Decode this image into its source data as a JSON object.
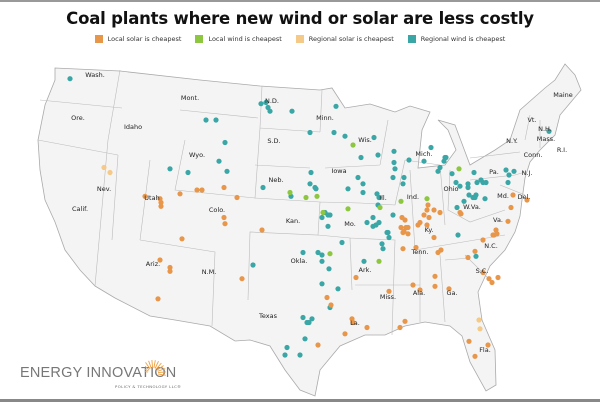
{
  "title": "Coal plants where new wind or solar are less costly",
  "legend": [
    {
      "key": "s",
      "label": "Local solar is cheapest",
      "color": "#e8964a"
    },
    {
      "key": "w",
      "label": "Local wind is cheapest",
      "color": "#8dc63f"
    },
    {
      "key": "r",
      "label": "Regional solar is cheapest",
      "color": "#f5c987"
    },
    {
      "key": "t",
      "label": "Regional wind is cheapest",
      "color": "#3aa6a6"
    }
  ],
  "logo": {
    "name": "ENERGY INNOVATION",
    "sub": "POLICY & TECHNOLOGY LLC®"
  },
  "states": [
    "Wash.",
    "Ore.",
    "Idaho",
    "Mont.",
    "Wyo.",
    "Nev.",
    "Calif.",
    "Utah",
    "Colo.",
    "Ariz.",
    "N.M.",
    "N.D.",
    "S.D.",
    "Neb.",
    "Kan.",
    "Okla.",
    "Texas",
    "Minn.",
    "Iowa",
    "Mo.",
    "Ark.",
    "La.",
    "Wis.",
    "Ill.",
    "Mich.",
    "Ind.",
    "Ohio",
    "Ky.",
    "Tenn.",
    "Miss.",
    "Ala.",
    "Ga.",
    "Fla.",
    "S.C.",
    "N.C.",
    "Va.",
    "W.Va.",
    "Pa.",
    "N.Y.",
    "Md.",
    "Del.",
    "N.J.",
    "Conn.",
    "Mass.",
    "R.I.",
    "Vt.",
    "N.H.",
    "Maine"
  ],
  "plants": [
    [
      -122.0,
      48.7,
      "t"
    ],
    [
      -102.9,
      46.7,
      "t"
    ],
    [
      -102.4,
      46.8,
      "t"
    ],
    [
      -102.2,
      46.4,
      "t"
    ],
    [
      -102.0,
      46.1,
      "t"
    ],
    [
      -99.8,
      46.1,
      "t"
    ],
    [
      -108.4,
      45.4,
      "t"
    ],
    [
      -107.4,
      45.4,
      "t"
    ],
    [
      -106.5,
      43.6,
      "t"
    ],
    [
      -107.1,
      42.1,
      "t"
    ],
    [
      -106.3,
      41.3,
      "t"
    ],
    [
      -112.0,
      41.5,
      "t"
    ],
    [
      -110.2,
      41.2,
      "t"
    ],
    [
      -102.7,
      40.0,
      "t"
    ],
    [
      -99.9,
      39.3,
      "t"
    ],
    [
      -103.7,
      33.8,
      "t"
    ],
    [
      -94.8,
      35.6,
      "t"
    ],
    [
      -98.7,
      34.8,
      "t"
    ],
    [
      -97.2,
      34.8,
      "t"
    ],
    [
      -96.8,
      34.6,
      "t"
    ],
    [
      -96.8,
      34.1,
      "t"
    ],
    [
      -96.1,
      33.5,
      "t"
    ],
    [
      -96.8,
      32.3,
      "t"
    ],
    [
      -95.2,
      31.9,
      "t"
    ],
    [
      -92.6,
      34.1,
      "t"
    ],
    [
      -96.0,
      30.4,
      "t"
    ],
    [
      -98.7,
      29.6,
      "t"
    ],
    [
      -98.3,
      29.2,
      "t"
    ],
    [
      -98.1,
      29.2,
      "t"
    ],
    [
      -97.8,
      29.5,
      "t"
    ],
    [
      -98.5,
      27.9,
      "t"
    ],
    [
      -100.3,
      27.2,
      "t"
    ],
    [
      -100.5,
      26.6,
      "t"
    ],
    [
      -99.0,
      26.6,
      "t"
    ],
    [
      -90.2,
      36.4,
      "t"
    ],
    [
      -90.8,
      35.5,
      "t"
    ],
    [
      -90.7,
      35.1,
      "t"
    ],
    [
      -83.2,
      36.2,
      "t"
    ],
    [
      -81.4,
      34.5,
      "t"
    ],
    [
      -95.4,
      46.5,
      "t"
    ],
    [
      -98.0,
      44.4,
      "t"
    ],
    [
      -95.6,
      44.4,
      "t"
    ],
    [
      -94.5,
      44.1,
      "t"
    ],
    [
      -91.6,
      44.0,
      "t"
    ],
    [
      -92.9,
      42.4,
      "t"
    ],
    [
      -91.2,
      42.6,
      "t"
    ],
    [
      -89.6,
      42.9,
      "t"
    ],
    [
      -89.6,
      42.0,
      "t"
    ],
    [
      -89.5,
      41.5,
      "t"
    ],
    [
      -88.1,
      42.2,
      "t"
    ],
    [
      -86.6,
      42.1,
      "t"
    ],
    [
      -85.9,
      43.2,
      "t"
    ],
    [
      -84.4,
      42.4,
      "t"
    ],
    [
      -84.6,
      42.1,
      "t"
    ],
    [
      -85.0,
      41.6,
      "t"
    ],
    [
      -85.2,
      41.3,
      "t"
    ],
    [
      -97.9,
      41.2,
      "t"
    ],
    [
      -98.0,
      40.3,
      "t"
    ],
    [
      -97.5,
      40.0,
      "t"
    ],
    [
      -97.4,
      39.9,
      "t"
    ],
    [
      -93.2,
      40.8,
      "t"
    ],
    [
      -92.7,
      40.3,
      "t"
    ],
    [
      -92.7,
      39.6,
      "t"
    ],
    [
      -94.2,
      39.9,
      "t"
    ],
    [
      -89.7,
      40.8,
      "t"
    ],
    [
      -88.6,
      40.8,
      "t"
    ],
    [
      -88.7,
      40.3,
      "t"
    ],
    [
      -91.3,
      39.5,
      "t"
    ],
    [
      -91.1,
      39.2,
      "t"
    ],
    [
      -91.2,
      38.6,
      "t"
    ],
    [
      -89.7,
      37.8,
      "t"
    ],
    [
      -96.5,
      38.0,
      "t"
    ],
    [
      -96.8,
      37.6,
      "t"
    ],
    [
      -96.2,
      37.8,
      "t"
    ],
    [
      -96.0,
      37.8,
      "t"
    ],
    [
      -96.2,
      36.9,
      "t"
    ],
    [
      -91.7,
      37.6,
      "t"
    ],
    [
      -92.3,
      37.2,
      "t"
    ],
    [
      -91.7,
      36.9,
      "t"
    ],
    [
      -91.4,
      37.0,
      "t"
    ],
    [
      -91.1,
      37.2,
      "t"
    ],
    [
      -90.3,
      36.4,
      "t"
    ],
    [
      -90.1,
      36.0,
      "t"
    ],
    [
      -84.5,
      42.4,
      "t"
    ],
    [
      -83.8,
      41.1,
      "t"
    ],
    [
      -81.6,
      41.2,
      "t"
    ],
    [
      -83.4,
      40.4,
      "t"
    ],
    [
      -83.0,
      40.1,
      "t"
    ],
    [
      -82.2,
      40.3,
      "t"
    ],
    [
      -82.2,
      40.0,
      "t"
    ],
    [
      -81.3,
      40.4,
      "t"
    ],
    [
      -80.9,
      40.6,
      "t"
    ],
    [
      -80.7,
      40.4,
      "t"
    ],
    [
      -80.4,
      40.4,
      "t"
    ],
    [
      -78.4,
      41.4,
      "t"
    ],
    [
      -78.1,
      41.0,
      "t"
    ],
    [
      -77.6,
      41.3,
      "t"
    ],
    [
      -78.2,
      40.4,
      "t"
    ],
    [
      -82.6,
      38.9,
      "t"
    ],
    [
      -82.1,
      39.4,
      "t"
    ],
    [
      -81.7,
      39.2,
      "t"
    ],
    [
      -81.4,
      39.4,
      "t"
    ],
    [
      -81.5,
      39.2,
      "t"
    ],
    [
      -80.5,
      39.1,
      "t"
    ],
    [
      -83.3,
      38.4,
      "t"
    ],
    [
      -74.1,
      44.5,
      "t"
    ],
    [
      -100.0,
      39.6,
      "w"
    ],
    [
      -96.0,
      34.7,
      "w"
    ],
    [
      -91.1,
      34.1,
      "w"
    ],
    [
      -93.7,
      43.4,
      "w"
    ],
    [
      -98.4,
      39.2,
      "w"
    ],
    [
      -97.3,
      39.3,
      "w"
    ],
    [
      -91.0,
      38.4,
      "w"
    ],
    [
      -88.9,
      38.9,
      "w"
    ],
    [
      -86.3,
      39.1,
      "w"
    ],
    [
      -94.2,
      38.3,
      "w"
    ],
    [
      -96.7,
      38.0,
      "w"
    ],
    [
      -83.1,
      41.5,
      "w"
    ],
    [
      -118.6,
      41.6,
      "r"
    ],
    [
      -118.0,
      41.2,
      "r"
    ],
    [
      -81.1,
      29.4,
      "r"
    ],
    [
      -81.0,
      28.7,
      "r"
    ],
    [
      -114.5,
      39.3,
      "s"
    ],
    [
      -113.0,
      39.1,
      "s"
    ],
    [
      -112.9,
      38.8,
      "s"
    ],
    [
      -112.9,
      38.5,
      "s"
    ],
    [
      -111.0,
      39.5,
      "s"
    ],
    [
      -109.3,
      39.8,
      "s"
    ],
    [
      -108.8,
      39.8,
      "s"
    ],
    [
      -106.6,
      40.0,
      "s"
    ],
    [
      -105.3,
      39.2,
      "s"
    ],
    [
      -106.6,
      37.6,
      "s"
    ],
    [
      -106.5,
      37.1,
      "s"
    ],
    [
      -102.8,
      36.6,
      "s"
    ],
    [
      -110.8,
      35.9,
      "s"
    ],
    [
      -113.0,
      34.2,
      "s"
    ],
    [
      -112.0,
      33.6,
      "s"
    ],
    [
      -112.0,
      33.3,
      "s"
    ],
    [
      -113.2,
      31.1,
      "s"
    ],
    [
      -104.8,
      32.7,
      "s"
    ],
    [
      -93.4,
      32.8,
      "s"
    ],
    [
      -96.3,
      31.2,
      "s"
    ],
    [
      -95.9,
      30.6,
      "s"
    ],
    [
      -97.2,
      27.4,
      "s"
    ],
    [
      -93.8,
      29.5,
      "s"
    ],
    [
      -93.7,
      29.2,
      "s"
    ],
    [
      -92.3,
      28.8,
      "s"
    ],
    [
      -94.5,
      28.3,
      "s"
    ],
    [
      -88.7,
      36.4,
      "s"
    ],
    [
      -88.2,
      36.3,
      "s"
    ],
    [
      -85.6,
      36.0,
      "s"
    ],
    [
      -88.7,
      35.1,
      "s"
    ],
    [
      -87.4,
      35.2,
      "s"
    ],
    [
      -85.2,
      34.8,
      "s"
    ],
    [
      -84.9,
      35.0,
      "s"
    ],
    [
      -79.6,
      36.2,
      "s"
    ],
    [
      -79.3,
      36.3,
      "s"
    ],
    [
      -80.7,
      35.8,
      "s"
    ],
    [
      -81.5,
      34.9,
      "s"
    ],
    [
      -82.2,
      34.4,
      "s"
    ],
    [
      -80.7,
      33.2,
      "s"
    ],
    [
      -80.1,
      32.7,
      "s"
    ],
    [
      -79.8,
      32.4,
      "s"
    ],
    [
      -79.2,
      32.8,
      "s"
    ],
    [
      -85.5,
      32.9,
      "s"
    ],
    [
      -85.5,
      32.1,
      "s"
    ],
    [
      -84.1,
      31.9,
      "s"
    ],
    [
      -87.7,
      32.2,
      "s"
    ],
    [
      -87.0,
      31.8,
      "s"
    ],
    [
      -90.1,
      31.7,
      "s"
    ],
    [
      -88.5,
      29.3,
      "s"
    ],
    [
      -89.0,
      28.8,
      "s"
    ],
    [
      -82.1,
      27.7,
      "s"
    ],
    [
      -80.2,
      27.4,
      "s"
    ],
    [
      -81.5,
      26.5,
      "s"
    ],
    [
      -86.2,
      38.6,
      "s"
    ],
    [
      -86.3,
      38.2,
      "s"
    ],
    [
      -85.6,
      38.2,
      "s"
    ],
    [
      -85.0,
      38.0,
      "s"
    ],
    [
      -86.6,
      37.8,
      "s"
    ],
    [
      -86.1,
      37.6,
      "s"
    ],
    [
      -87.2,
      37.0,
      "s"
    ],
    [
      -88.8,
      37.6,
      "s"
    ],
    [
      -88.5,
      37.4,
      "s"
    ],
    [
      -88.9,
      36.8,
      "s"
    ],
    [
      -88.4,
      36.8,
      "s"
    ],
    [
      -88.2,
      36.8,
      "s"
    ],
    [
      -88.6,
      36.5,
      "s"
    ],
    [
      -87.0,
      37.2,
      "s"
    ],
    [
      -86.3,
      37.0,
      "s"
    ],
    [
      -83.0,
      38.0,
      "s"
    ],
    [
      -77.7,
      39.4,
      "s"
    ],
    [
      -76.3,
      39.0,
      "s"
    ],
    [
      -77.9,
      38.4,
      "s"
    ],
    [
      -82.9,
      37.9,
      "s"
    ],
    [
      -78.2,
      37.3,
      "s"
    ],
    [
      -79.4,
      36.6,
      "s"
    ],
    [
      -79.7,
      36.2,
      "s"
    ]
  ]
}
